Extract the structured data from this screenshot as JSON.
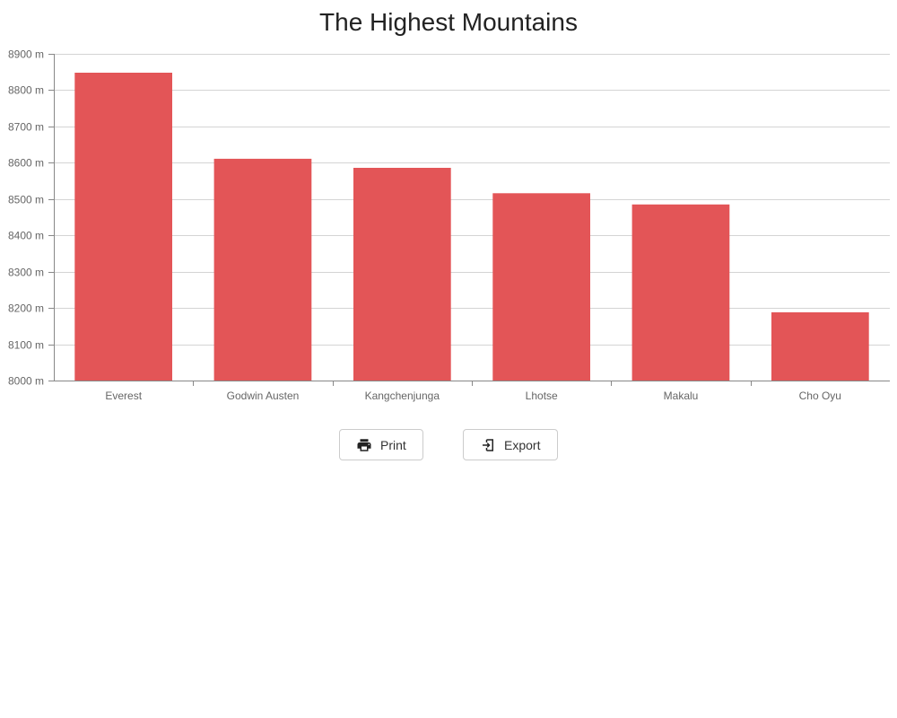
{
  "chart_data": {
    "type": "bar",
    "title": "The Highest Mountains",
    "categories": [
      "Everest",
      "Godwin Austen",
      "Kangchenjunga",
      "Lhotse",
      "Makalu",
      "Cho Oyu"
    ],
    "values": [
      8848,
      8611,
      8586,
      8516,
      8485,
      8188
    ],
    "ylim": [
      8000,
      8900
    ],
    "yticks": [
      8000,
      8100,
      8200,
      8300,
      8400,
      8500,
      8600,
      8700,
      8800,
      8900
    ],
    "ytick_suffix": " m",
    "xlabel": "",
    "ylabel": "",
    "grid": true,
    "bar_color": "#e35557",
    "grid_color": "#d4d4d4",
    "axis_color": "#888888"
  },
  "toolbar": {
    "print_label": "Print",
    "print_icon": "printer-icon",
    "export_label": "Export",
    "export_icon": "export-icon"
  }
}
